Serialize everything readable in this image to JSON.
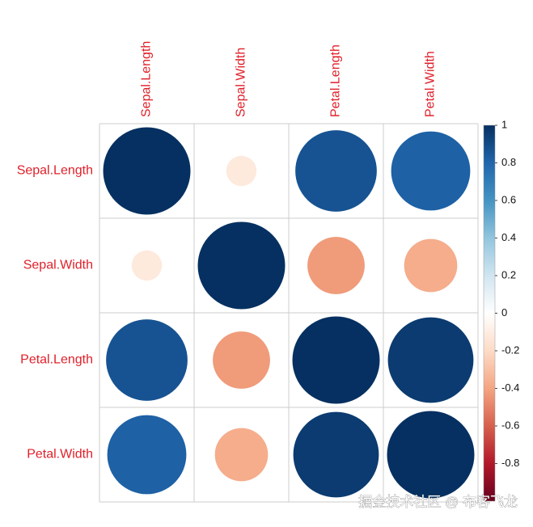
{
  "chart_data": {
    "type": "corrplot",
    "variables": [
      "Sepal.Length",
      "Sepal.Width",
      "Petal.Length",
      "Petal.Width"
    ],
    "values": [
      [
        1,
        -0.12,
        0.87,
        0.82
      ],
      [
        -0.12,
        1,
        -0.43,
        -0.37
      ],
      [
        0.87,
        -0.43,
        1,
        0.96
      ],
      [
        0.82,
        -0.37,
        0.96,
        1
      ]
    ],
    "colormap": [
      "#67001F",
      "#B2182B",
      "#D6604D",
      "#F4A582",
      "#FDDBC7",
      "#FFFFFF",
      "#D1E5F0",
      "#92C5DE",
      "#4393C3",
      "#2166AC",
      "#053061"
    ],
    "clim": [
      -1,
      1
    ],
    "cticks": [
      1,
      0.8,
      0.6,
      0.4,
      0.2,
      0,
      -0.2,
      -0.4,
      -0.6,
      -0.8
    ],
    "watermark": "掘金技术社区 @ 布客飞龙"
  }
}
